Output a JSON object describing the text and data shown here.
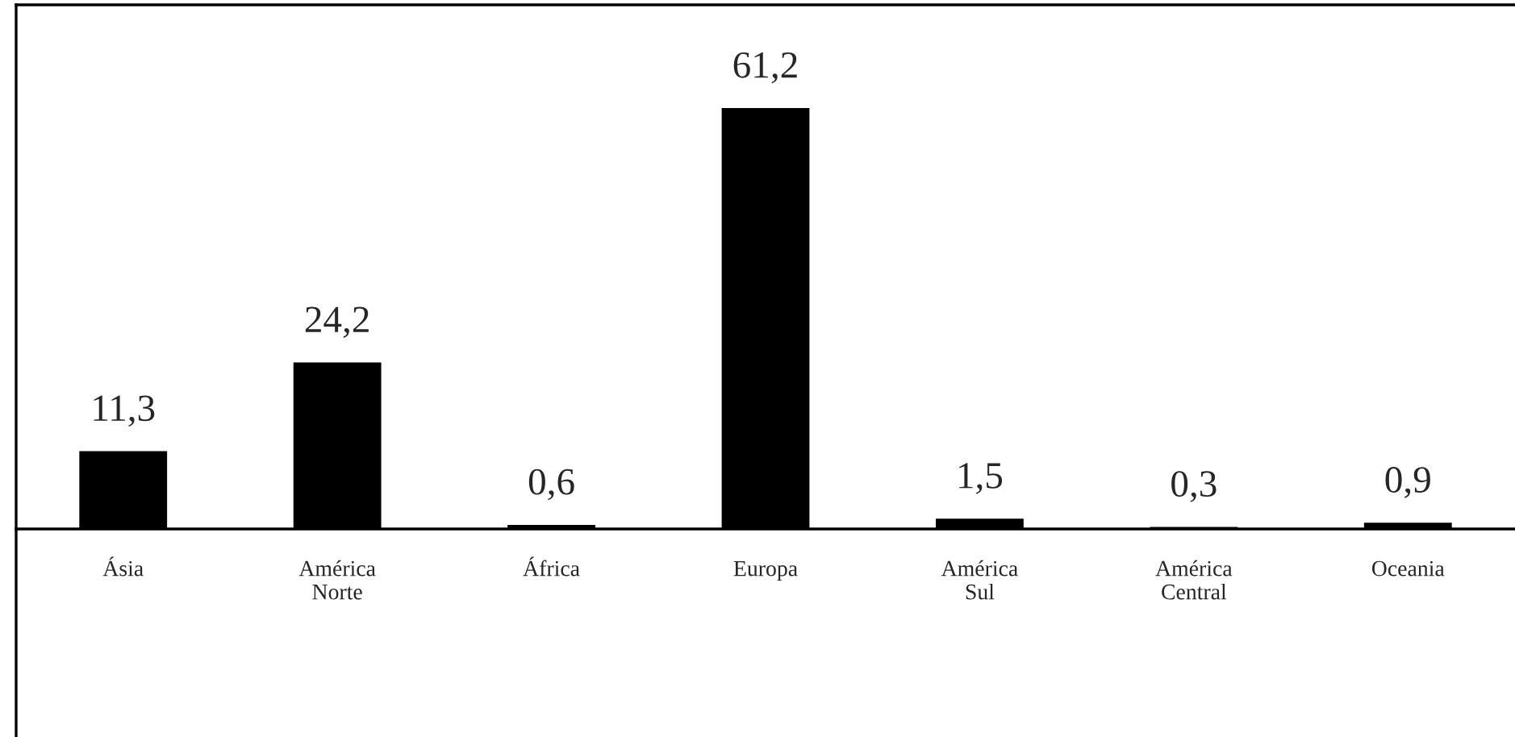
{
  "chart_data": {
    "type": "bar",
    "categories": [
      "Ásia",
      "América Norte",
      "África",
      "Europa",
      "América Sul",
      "América Central",
      "Oceania"
    ],
    "values": [
      11.3,
      24.2,
      0.6,
      61.2,
      1.5,
      0.3,
      0.9
    ],
    "value_labels": [
      "11,3",
      "24,2",
      "0,6",
      "61,2",
      "1,5",
      "0,3",
      "0,9"
    ],
    "color": "#000000",
    "grid": false,
    "legend": false
  }
}
